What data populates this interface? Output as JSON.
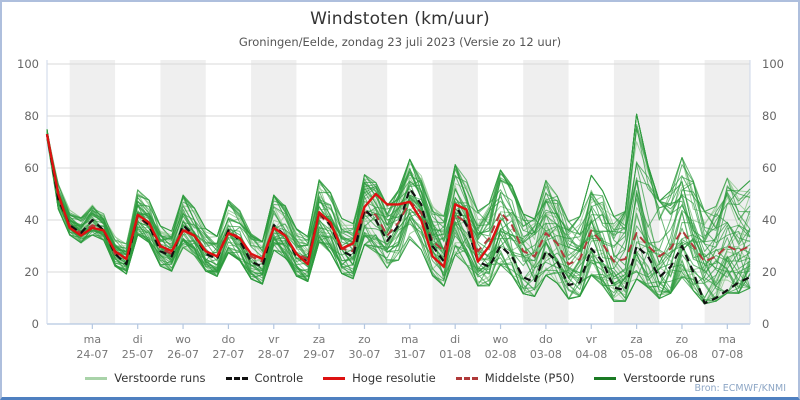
{
  "header": {
    "title": "Windstoten (km/uur)",
    "subtitle": "Groningen/Eelde, zondag 23 juli 2023 (Versie zo 12 uur)"
  },
  "source_label": "Bron: ECMWF/KNMI",
  "colors": {
    "frame_border": "#aebfdd",
    "frame_border_bottom": "#4f80c0",
    "band_gray": "#efefef",
    "gridline": "#d9d9d9",
    "axis_line": "#b4c7e0",
    "x_label": "#777777",
    "y_label": "#666666",
    "ensemble_light": "#9ccf9c",
    "ensemble_dark": "#2e9b3e",
    "control": "#111111",
    "hires": "#dd1111",
    "p50": "#b03a3a"
  },
  "legend": {
    "items": [
      {
        "label": "Verstoorde runs",
        "style": "solid",
        "color": "#a9d3a9"
      },
      {
        "label": "Controle",
        "style": "dashed",
        "color": "#111111"
      },
      {
        "label": "Hoge resolutie",
        "style": "solid",
        "color": "#dd1111"
      },
      {
        "label": "Middelste (P50)",
        "style": "dashed",
        "color": "#b03a3a"
      },
      {
        "label": "Verstoorde runs",
        "style": "solid",
        "color": "#1a7a24"
      }
    ]
  },
  "chart_data": {
    "type": "line",
    "title": "Windstoten (km/uur)",
    "subtitle": "Groningen/Eelde, zondag 23 juli 2023 (Versie zo 12 uur)",
    "ylabel": "km/uur",
    "ylim": [
      0,
      100
    ],
    "yticks": [
      0,
      20,
      40,
      60,
      80,
      100
    ],
    "grid": true,
    "legend_position": "bottom",
    "x_start": "2023-07-23 12:00",
    "x_step_hours": 6,
    "x_points": 63,
    "x_labels": [
      {
        "day": "ma",
        "date": "24-07"
      },
      {
        "day": "di",
        "date": "25-07"
      },
      {
        "day": "wo",
        "date": "26-07"
      },
      {
        "day": "do",
        "date": "27-07"
      },
      {
        "day": "vr",
        "date": "28-07"
      },
      {
        "day": "za",
        "date": "29-07"
      },
      {
        "day": "zo",
        "date": "30-07"
      },
      {
        "day": "ma",
        "date": "31-07"
      },
      {
        "day": "di",
        "date": "01-08"
      },
      {
        "day": "wo",
        "date": "02-08"
      },
      {
        "day": "do",
        "date": "03-08"
      },
      {
        "day": "vr",
        "date": "04-08"
      },
      {
        "day": "za",
        "date": "05-08"
      },
      {
        "day": "zo",
        "date": "06-08"
      },
      {
        "day": "ma",
        "date": "07-08"
      }
    ],
    "series": [
      {
        "name": "Controle",
        "style": "dashed",
        "values": [
          73,
          48,
          38,
          35,
          40,
          36,
          27,
          23,
          42,
          38,
          28,
          26,
          38,
          34,
          27,
          25,
          36,
          32,
          24,
          22,
          38,
          34,
          26,
          24,
          43,
          38,
          28,
          26,
          44,
          40,
          32,
          38,
          52,
          46,
          30,
          24,
          46,
          38,
          24,
          22,
          30,
          26,
          18,
          16,
          28,
          24,
          15,
          16,
          29,
          24,
          14,
          13,
          30,
          26,
          18,
          22,
          30,
          20,
          8,
          10,
          13,
          16,
          18
        ]
      },
      {
        "name": "Hoge resolutie",
        "style": "solid",
        "values": [
          73,
          50,
          37,
          34,
          37,
          36,
          28,
          25,
          42,
          39,
          30,
          28,
          36,
          34,
          28,
          26,
          35,
          33,
          27,
          25,
          37,
          34,
          27,
          23,
          43,
          39,
          29,
          31,
          45,
          50,
          46,
          46,
          47,
          40,
          26,
          22,
          46,
          44,
          24,
          30,
          40
        ]
      },
      {
        "name": "Middelste (P50)",
        "style": "dashed",
        "values": [
          73,
          49,
          38,
          35,
          38,
          36,
          27,
          25,
          41,
          38,
          29,
          27,
          37,
          34,
          28,
          26,
          36,
          33,
          26,
          24,
          37,
          34,
          27,
          25,
          42,
          38,
          29,
          28,
          43,
          42,
          34,
          39,
          47,
          43,
          32,
          28,
          42,
          39,
          28,
          33,
          43,
          38,
          28,
          26,
          35,
          31,
          23,
          25,
          36,
          31,
          24,
          25,
          35,
          30,
          26,
          29,
          36,
          30,
          24,
          26,
          30,
          28,
          30
        ]
      }
    ],
    "ensemble": {
      "name": "Verstoorde runs",
      "count": 50,
      "light_members": 14,
      "seed": 20230723,
      "envelope_low": [
        70,
        44,
        34,
        31,
        34,
        32,
        22,
        19,
        34,
        31,
        22,
        20,
        29,
        26,
        20,
        18,
        27,
        24,
        17,
        15,
        28,
        25,
        18,
        16,
        31,
        27,
        19,
        17,
        30,
        27,
        21,
        24,
        32,
        28,
        18,
        14,
        26,
        22,
        14,
        14,
        22,
        18,
        11,
        10,
        18,
        15,
        9,
        10,
        18,
        14,
        8,
        8,
        16,
        13,
        9,
        11,
        17,
        12,
        7,
        8,
        11,
        11,
        13
      ],
      "envelope_high": [
        75,
        54,
        44,
        41,
        46,
        43,
        34,
        31,
        52,
        48,
        38,
        36,
        50,
        45,
        37,
        34,
        48,
        44,
        35,
        32,
        50,
        46,
        37,
        34,
        56,
        51,
        41,
        39,
        58,
        55,
        46,
        52,
        64,
        58,
        46,
        42,
        62,
        56,
        44,
        47,
        60,
        54,
        43,
        41,
        56,
        50,
        40,
        42,
        58,
        52,
        42,
        44,
        82,
        62,
        48,
        52,
        65,
        56,
        44,
        46,
        57,
        52,
        56
      ]
    }
  }
}
